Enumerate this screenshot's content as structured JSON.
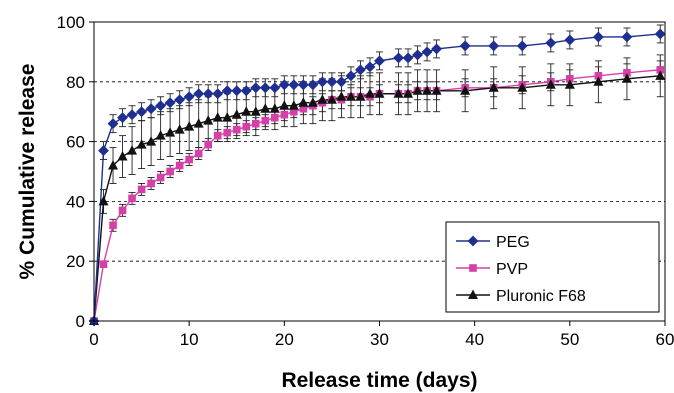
{
  "chart_data": {
    "type": "line",
    "xlabel": "Release time (days)",
    "ylabel": "% Cumulative release",
    "xlim": [
      0,
      60
    ],
    "ylim": [
      0,
      100
    ],
    "xticks": [
      0,
      10,
      20,
      30,
      40,
      50,
      60
    ],
    "yticks": [
      0,
      20,
      40,
      60,
      80,
      100
    ],
    "grid": "horizontal dashed at 20, 40, 60, 80",
    "legend_position": "bottom-right",
    "series": [
      {
        "name": "PEG",
        "color": "#1f2f8f",
        "marker": "diamond",
        "x": [
          0,
          1,
          2,
          3,
          4,
          5,
          6,
          7,
          8,
          9,
          10,
          11,
          12,
          13,
          14,
          15,
          16,
          17,
          18,
          19,
          20,
          21,
          22,
          23,
          24,
          25,
          26,
          27,
          28,
          29,
          30,
          32,
          33,
          34,
          35,
          36,
          39,
          42,
          45,
          48,
          50,
          53,
          56,
          59.5
        ],
        "y": [
          0,
          57,
          66,
          68,
          69,
          70,
          71,
          72,
          73,
          74,
          75,
          76,
          76,
          76,
          77,
          77,
          77,
          78,
          78,
          78,
          79,
          79,
          79,
          79,
          80,
          80,
          80,
          82,
          84,
          85,
          87,
          88,
          88,
          89,
          90,
          91,
          92,
          92,
          92,
          93,
          94,
          95,
          95,
          96
        ],
        "err": [
          0,
          3,
          3,
          3,
          3,
          3,
          3,
          3,
          3,
          3,
          3,
          3,
          3,
          3,
          3,
          3,
          3,
          3,
          3,
          3,
          3,
          3,
          3,
          3,
          3,
          3,
          3,
          3,
          3,
          3,
          3,
          3,
          3,
          3,
          3,
          3,
          3,
          3,
          3,
          3,
          3,
          3,
          3,
          3
        ]
      },
      {
        "name": "PVP",
        "color": "#d63fa8",
        "marker": "square",
        "x": [
          0,
          1,
          2,
          3,
          4,
          5,
          6,
          7,
          8,
          9,
          10,
          11,
          12,
          13,
          14,
          15,
          16,
          17,
          18,
          19,
          20,
          21,
          22,
          23,
          24,
          25,
          26,
          27,
          28,
          29,
          30,
          32,
          33,
          34,
          35,
          36,
          39,
          42,
          45,
          48,
          50,
          53,
          56,
          59.5
        ],
        "y": [
          0,
          19,
          32,
          37,
          41,
          44,
          46,
          48,
          50,
          52,
          54,
          56,
          59,
          62,
          63,
          64,
          65,
          66,
          67,
          68,
          69,
          70,
          71,
          72,
          73,
          74,
          74,
          75,
          75,
          75,
          76,
          76,
          76,
          77,
          77,
          77,
          78,
          78,
          79,
          80,
          81,
          82,
          83,
          84
        ],
        "err": [
          0,
          1,
          2,
          2,
          2,
          2,
          2,
          2,
          2,
          2,
          2,
          2,
          2,
          2,
          2,
          2,
          2,
          2,
          2,
          2,
          2,
          2,
          2,
          3,
          3,
          3,
          3,
          3,
          3,
          3,
          3,
          3,
          3,
          3,
          3,
          3,
          3,
          3,
          3,
          3,
          3,
          3,
          3,
          3
        ]
      },
      {
        "name": "Pluronic F68",
        "color": "#111111",
        "marker": "triangle",
        "x": [
          0,
          1,
          2,
          3,
          4,
          5,
          6,
          7,
          8,
          9,
          10,
          11,
          12,
          13,
          14,
          15,
          16,
          17,
          18,
          19,
          20,
          21,
          22,
          23,
          24,
          25,
          26,
          27,
          28,
          29,
          30,
          32,
          33,
          34,
          35,
          36,
          39,
          42,
          45,
          48,
          50,
          53,
          56,
          59.5
        ],
        "y": [
          0,
          40,
          52,
          55,
          57,
          59,
          60,
          62,
          63,
          64,
          65,
          66,
          67,
          68,
          68,
          69,
          70,
          70,
          71,
          71,
          72,
          72,
          73,
          73,
          74,
          74,
          75,
          75,
          75,
          76,
          76,
          76,
          76,
          77,
          77,
          77,
          77,
          78,
          78,
          79,
          79,
          80,
          81,
          82
        ],
        "err": [
          0,
          4,
          6,
          7,
          8,
          8,
          8,
          8,
          8,
          8,
          8,
          8,
          8,
          8,
          8,
          8,
          8,
          8,
          7,
          7,
          7,
          7,
          7,
          7,
          7,
          7,
          7,
          7,
          7,
          7,
          7,
          7,
          7,
          7,
          7,
          7,
          7,
          7,
          7,
          7,
          7,
          7,
          7,
          7
        ]
      }
    ]
  }
}
